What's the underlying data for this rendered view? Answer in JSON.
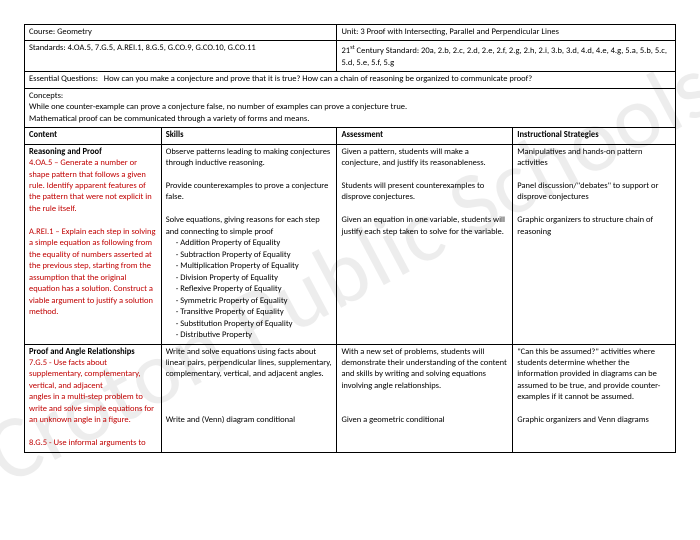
{
  "watermark": "Croton Public Schools",
  "header": {
    "course_label": "Course:",
    "course_value": "Geometry",
    "unit_label": "Unit:",
    "unit_value": "3 Proof with Intersecting, Parallel and Perpendicular Lines",
    "standards_label": "Standards:",
    "standards_value": "4.OA.5, 7.G.5, A.REI.1, 8.G.5, G.CO.9, G.CO.10, G.CO.11",
    "century_label": "21",
    "century_suffix": "st",
    "century_rest": " Century Standard:  20a, 2.b, 2.c, 2.d, 2.e, 2.f, 2.g, 2.h, 2.i, 3.b, 3.d, 4.d, 4.e, 4.g, 5.a, 5.b, 5.c, 5.d, 5.e, 5.f, 5.g",
    "eq_label": "Essential Questions:",
    "eq_value": "How can you make a conjecture and prove that it is true?  How can a chain of reasoning be organized to communicate proof?",
    "concepts_label": "Concepts:",
    "concepts_line1": "While one counter-example can prove a conjecture false, no number of examples can prove a conjecture true.",
    "concepts_line2": "Mathematical proof can be communicated through a variety of forms and means."
  },
  "columns": {
    "content": "Content",
    "skills": "Skills",
    "assessment": "Assessment",
    "strategies": "Instructional Strategies"
  },
  "row1": {
    "content": {
      "heading": "Reasoning and Proof",
      "p1_code": "4.OA.5 – ",
      "p1_text": "Generate a number or shape pattern that follows a given rule.  Identify apparent features of the pattern that were not explicit in the rule itself.",
      "p2_code": "A.REI.1 – ",
      "p2_text": "Explain each step in solving a simple equation as following from the equality of numbers asserted at the previous step, starting from the assumption that the original equation has a solution.  Construct a viable argument to justify a solution method."
    },
    "skills": {
      "p1": "Observe patterns leading to making conjectures through inductive reasoning.",
      "p2": "Provide counterexamples to prove a conjecture false.",
      "p3": "Solve equations, giving reasons for each step and connecting to simple proof",
      "bullets": [
        "Addition Property of Equality",
        "Subtraction Property of Equality",
        "Multiplication Property of Equality",
        "Division Property of Equality",
        "Reflexive Property of Equality",
        "Symmetric Property of Equality",
        "Transitive Property of Equality",
        "Substitution Property of Equality",
        "Distributive Property"
      ]
    },
    "assessment": {
      "p1": "Given a pattern, students will make a conjecture, and justify its reasonableness.",
      "p2": "Students will present counterexamples to disprove conjectures.",
      "p3": "Given an equation in one variable, students will justify each step taken to solve for the variable."
    },
    "strategies": {
      "p1": "Manipulatives and hands-on pattern activities",
      "p2": "Panel discussion/\"debates\" to support or disprove conjectures",
      "p3": "Graphic organizers to structure chain of reasoning"
    }
  },
  "row2": {
    "content": {
      "heading": "Proof and Angle Relationships",
      "p1_code": "7.G.5 - ",
      "p1_text": "Use facts about supplementary, complementary, vertical, and adjacent",
      "p1_text2": "angles in a multi-step problem to write and solve simple equations for an unknown angle in a figure.",
      "p2_code": "8.G.5 - ",
      "p2_text": "Use informal arguments to"
    },
    "skills": {
      "p1": "Write and solve equations using facts about linear pairs, perpendicular lines, supplementary, complementary, vertical, and adjacent angles.",
      "p2": "Write and (Venn) diagram conditional"
    },
    "assessment": {
      "p1": "With a new set of problems, students will demonstrate their understanding of the content and skills by writing and solving equations involving angle relationships.",
      "p2": "Given a geometric conditional"
    },
    "strategies": {
      "p1": "\"Can this be assumed?\" activities where students determine whether the information provided in diagrams can be assumed to be true, and provide counter-examples if it cannot be assumed.",
      "p2": "Graphic organizers and Venn diagrams"
    }
  }
}
